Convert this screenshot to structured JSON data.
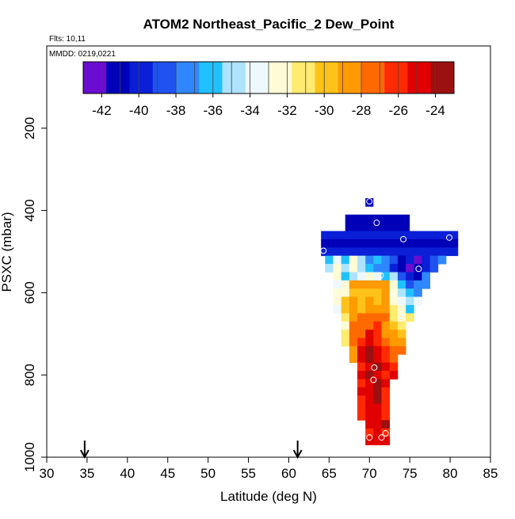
{
  "chart_data": {
    "type": "heatmap",
    "title": "ATOM2 Northeast_Pacific_2 Dew_Point",
    "subtitle_flights": "Flts: 10,11",
    "subtitle_dates": "MMDD: 0219,0221",
    "xlabel": "Latitude (deg N)",
    "ylabel": "PSXC (mbar)",
    "xlim": [
      30,
      85
    ],
    "ylim": [
      1000,
      0
    ],
    "x_ticks": [
      30,
      35,
      40,
      45,
      50,
      55,
      60,
      65,
      70,
      75,
      80,
      85
    ],
    "y_ticks": [
      200,
      400,
      600,
      800,
      1000
    ],
    "grid": false,
    "colorbar": {
      "range": [
        -43,
        -23
      ],
      "ticks": [
        -42,
        -40,
        -38,
        -36,
        -34,
        -32,
        -30,
        -28,
        -26,
        -24
      ],
      "colors": [
        "#6a0dd1",
        "#0000b8",
        "#0a1fd6",
        "#1f52f0",
        "#2f87ff",
        "#21c1ff",
        "#aee3ff",
        "#eef8ff",
        "#fffbd6",
        "#ffeb70",
        "#ffc21a",
        "#ff9a00",
        "#ff6a00",
        "#ff2a00",
        "#e00000",
        "#9b1010"
      ],
      "edges": [
        -43,
        -42,
        -41,
        -40,
        -39,
        -38,
        -37,
        -36,
        -35,
        -34,
        -33,
        -32,
        -31,
        -30,
        -29,
        -28,
        -27,
        -26,
        -25,
        -24,
        -23
      ]
    },
    "bin_size": {
      "dlat": 1,
      "dp": 20
    },
    "rows": [
      {
        "p": 380,
        "segments": [
          {
            "from": 69.5,
            "to": 70.5,
            "value": -41
          }
        ]
      },
      {
        "p": 420,
        "segments": [
          {
            "from": 67,
            "to": 75,
            "value": -41
          }
        ]
      },
      {
        "p": 440,
        "segments": [
          {
            "from": 67,
            "to": 75,
            "value": -41
          }
        ]
      },
      {
        "p": 460,
        "segments": [
          {
            "from": 64,
            "to": 81,
            "value": -40
          }
        ]
      },
      {
        "p": 480,
        "segments": [
          {
            "from": 64,
            "to": 81,
            "value": -40.5
          }
        ]
      },
      {
        "p": 500,
        "segments": [
          {
            "from": 64,
            "to": 81,
            "value": -40
          }
        ]
      },
      {
        "p": 520,
        "cells": [
          [
            65,
            -36
          ],
          [
            66,
            -34
          ],
          [
            67,
            -35.5
          ],
          [
            68,
            -33
          ],
          [
            69,
            -35
          ],
          [
            70,
            -36.5
          ],
          [
            71,
            -36
          ],
          [
            72,
            -38
          ],
          [
            73,
            -39
          ],
          [
            74,
            -41
          ],
          [
            75,
            -40
          ],
          [
            76,
            -42.5
          ],
          [
            77,
            -40
          ],
          [
            78,
            -39
          ],
          [
            79,
            -38
          ]
        ]
      },
      {
        "p": 540,
        "cells": [
          [
            65,
            -35
          ],
          [
            66,
            -33
          ],
          [
            67,
            -34.5
          ],
          [
            68,
            -32.5
          ],
          [
            69,
            -35
          ],
          [
            70,
            -36
          ],
          [
            71,
            -37
          ],
          [
            72,
            -38
          ],
          [
            73,
            -40
          ],
          [
            74,
            -41
          ],
          [
            75,
            -42.5
          ],
          [
            76,
            -41
          ],
          [
            77,
            -39.5
          ],
          [
            78,
            -39
          ]
        ]
      },
      {
        "p": 560,
        "cells": [
          [
            66,
            -33
          ],
          [
            67,
            -35.5
          ],
          [
            68,
            -35
          ],
          [
            69,
            -34
          ],
          [
            70,
            -32
          ],
          [
            71,
            -33.5
          ],
          [
            72,
            -36
          ],
          [
            73,
            -35
          ],
          [
            74,
            -38.5
          ],
          [
            75,
            -40
          ],
          [
            76,
            -41
          ],
          [
            77,
            -38
          ]
        ]
      },
      {
        "p": 580,
        "cells": [
          [
            66,
            -34
          ],
          [
            67,
            -32
          ],
          [
            68,
            -28.5
          ],
          [
            69,
            -28.5
          ],
          [
            70,
            -28.5
          ],
          [
            71,
            -28.5
          ],
          [
            72,
            -28.5
          ],
          [
            73,
            -33
          ],
          [
            74,
            -36
          ],
          [
            75,
            -39
          ],
          [
            76,
            -37.5
          ],
          [
            77,
            -38
          ]
        ]
      },
      {
        "p": 600,
        "cells": [
          [
            66,
            -33
          ],
          [
            67,
            -32
          ],
          [
            68,
            -29.5
          ],
          [
            69,
            -29.5
          ],
          [
            70,
            -30
          ],
          [
            71,
            -30
          ],
          [
            72,
            -29
          ],
          [
            73,
            -32.5
          ],
          [
            74,
            -35
          ],
          [
            75,
            -36
          ],
          [
            76,
            -38
          ]
        ]
      },
      {
        "p": 620,
        "cells": [
          [
            66,
            -32
          ],
          [
            67,
            -30
          ],
          [
            68,
            -29
          ],
          [
            69,
            -29.5
          ],
          [
            70,
            -29
          ],
          [
            71,
            -29.5
          ],
          [
            72,
            -29
          ],
          [
            73,
            -31.5
          ],
          [
            74,
            -34
          ],
          [
            75,
            -35
          ],
          [
            76,
            -33.5
          ]
        ]
      },
      {
        "p": 640,
        "cells": [
          [
            66,
            -33.5
          ],
          [
            67,
            -29.5
          ],
          [
            68,
            -29
          ],
          [
            69,
            -29.5
          ],
          [
            70,
            -29
          ],
          [
            71,
            -28.5
          ],
          [
            72,
            -29
          ],
          [
            73,
            -31
          ],
          [
            74,
            -33
          ],
          [
            75,
            -35.5
          ]
        ]
      },
      {
        "p": 660,
        "cells": [
          [
            67,
            -31
          ],
          [
            68,
            -29
          ],
          [
            69,
            -28
          ],
          [
            70,
            -27.5
          ],
          [
            71,
            -26.5
          ],
          [
            72,
            -28
          ],
          [
            73,
            -31
          ],
          [
            74,
            -32
          ],
          [
            75,
            -31
          ]
        ]
      },
      {
        "p": 680,
        "cells": [
          [
            67,
            -31.5
          ],
          [
            68,
            -28
          ],
          [
            69,
            -27.5
          ],
          [
            70,
            -26.5
          ],
          [
            71,
            -25.5
          ],
          [
            72,
            -29
          ],
          [
            73,
            -30
          ],
          [
            74,
            -31
          ]
        ]
      },
      {
        "p": 700,
        "cells": [
          [
            67,
            -30.5
          ],
          [
            68,
            -27
          ],
          [
            69,
            -26.5
          ],
          [
            70,
            -25
          ],
          [
            71,
            -26
          ],
          [
            72,
            -28.5
          ],
          [
            73,
            -29
          ],
          [
            74,
            -30
          ]
        ]
      },
      {
        "p": 720,
        "cells": [
          [
            67,
            -31
          ],
          [
            68,
            -27.5
          ],
          [
            69,
            -26
          ],
          [
            70,
            -24.5
          ],
          [
            71,
            -25.5
          ],
          [
            72,
            -28
          ],
          [
            73,
            -28.5
          ],
          [
            74,
            -28.5
          ]
        ]
      },
      {
        "p": 740,
        "cells": [
          [
            68,
            -29
          ],
          [
            69,
            -24.5
          ],
          [
            70,
            -24
          ],
          [
            71,
            -25
          ],
          [
            72,
            -26
          ],
          [
            73,
            -27
          ],
          [
            74,
            -27.5
          ]
        ]
      },
      {
        "p": 760,
        "cells": [
          [
            68,
            -28.5
          ],
          [
            69,
            -24.5
          ],
          [
            70,
            -24
          ],
          [
            71,
            -24.5
          ],
          [
            72,
            -25.5
          ],
          [
            73,
            -26.5
          ]
        ]
      },
      {
        "p": 780,
        "cells": [
          [
            69,
            -25.5
          ],
          [
            70,
            -24.5
          ],
          [
            71,
            -24
          ],
          [
            72,
            -25
          ],
          [
            73,
            -26
          ]
        ]
      },
      {
        "p": 800,
        "cells": [
          [
            69,
            -25
          ],
          [
            70,
            -24
          ],
          [
            71,
            -24.5
          ],
          [
            72,
            -25.5
          ],
          [
            73,
            -25
          ]
        ]
      },
      {
        "p": 820,
        "cells": [
          [
            69,
            -25.5
          ],
          [
            70,
            -24.5
          ],
          [
            71,
            -24
          ],
          [
            72,
            -25
          ]
        ]
      },
      {
        "p": 840,
        "cells": [
          [
            69,
            -25
          ],
          [
            70,
            -24.5
          ],
          [
            71,
            -24
          ],
          [
            72,
            -25.5
          ]
        ]
      },
      {
        "p": 860,
        "cells": [
          [
            69,
            -26
          ],
          [
            70,
            -24.5
          ],
          [
            71,
            -24
          ],
          [
            72,
            -25.5
          ]
        ]
      },
      {
        "p": 880,
        "cells": [
          [
            69,
            -26
          ],
          [
            70,
            -25
          ],
          [
            71,
            -24.5
          ],
          [
            72,
            -26
          ]
        ]
      },
      {
        "p": 900,
        "cells": [
          [
            69,
            -25.5
          ],
          [
            70,
            -25
          ],
          [
            71,
            -24.5
          ],
          [
            72,
            -25.5
          ]
        ]
      },
      {
        "p": 920,
        "cells": [
          [
            70,
            -25
          ],
          [
            71,
            -24.5
          ],
          [
            72,
            -24
          ]
        ]
      },
      {
        "p": 940,
        "cells": [
          [
            70,
            -25.5
          ],
          [
            71,
            -24.5
          ],
          [
            72,
            -25.5
          ]
        ]
      },
      {
        "p": 960,
        "cells": [
          [
            70,
            -25
          ],
          [
            71,
            -24.5
          ],
          [
            72,
            -25
          ]
        ]
      }
    ],
    "profile_points": [
      {
        "lat": 70.0,
        "p": 378
      },
      {
        "lat": 70.9,
        "p": 430
      },
      {
        "lat": 74.2,
        "p": 470
      },
      {
        "lat": 79.9,
        "p": 466
      },
      {
        "lat": 64.3,
        "p": 498
      },
      {
        "lat": 76.1,
        "p": 542
      },
      {
        "lat": 71.4,
        "p": 558
      },
      {
        "lat": 72.9,
        "p": 601
      },
      {
        "lat": 70.6,
        "p": 782
      },
      {
        "lat": 70.5,
        "p": 812
      },
      {
        "lat": 70.0,
        "p": 952
      },
      {
        "lat": 71.5,
        "p": 952
      },
      {
        "lat": 72.0,
        "p": 942
      }
    ],
    "markers": {
      "lat": [
        34.7,
        61.1
      ]
    }
  }
}
